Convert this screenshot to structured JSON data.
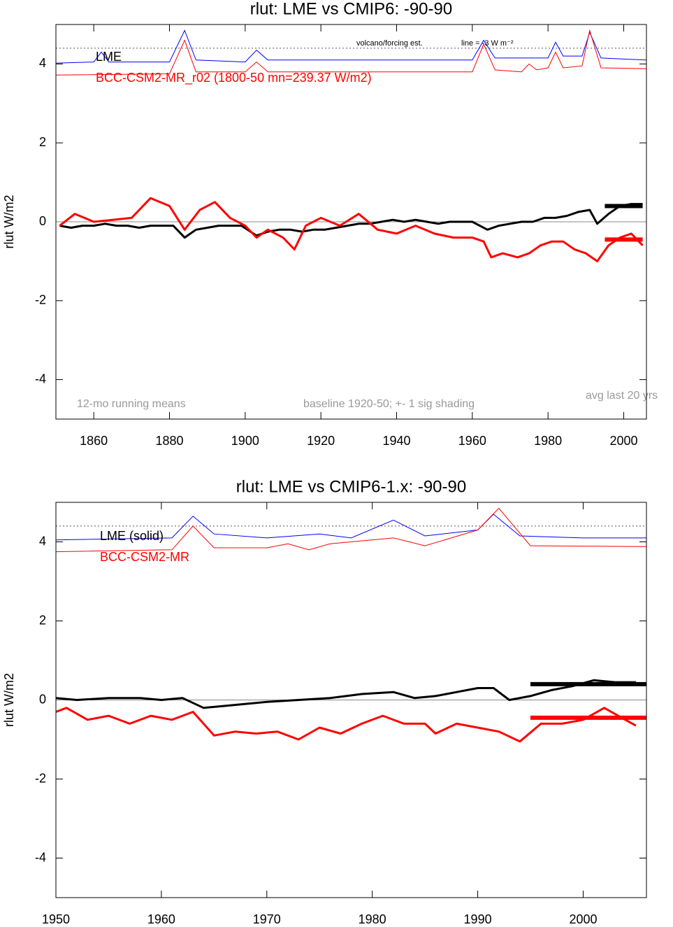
{
  "chart_data": [
    {
      "type": "line",
      "title": "rlut: LME vs CMIP6: -90-90",
      "ylabel": "rlut W/m2",
      "xlim": [
        1850,
        2006
      ],
      "ylim": [
        -5,
        5
      ],
      "xticks": [
        1860,
        1880,
        1900,
        1920,
        1940,
        1960,
        1980,
        2000
      ],
      "yticks": [
        -4,
        -2,
        0,
        2,
        4
      ],
      "ref_line": 4.4,
      "avg_period": [
        1995,
        2005
      ],
      "series": [
        {
          "name": "LME",
          "color": "#000000",
          "avg": 0.4,
          "x": [
            1851,
            1854,
            1857,
            1860,
            1863,
            1866,
            1869,
            1872,
            1875,
            1878,
            1881,
            1884,
            1887,
            1890,
            1893,
            1896,
            1899,
            1903,
            1906,
            1909,
            1912,
            1915,
            1918,
            1921,
            1924,
            1927,
            1930,
            1933,
            1936,
            1939,
            1942,
            1945,
            1948,
            1951,
            1954,
            1957,
            1960,
            1964,
            1967,
            1970,
            1973,
            1976,
            1979,
            1982,
            1985,
            1988,
            1991,
            1993,
            1996,
            1999,
            2002,
            2005
          ],
          "values": [
            -0.1,
            -0.15,
            -0.1,
            -0.1,
            -0.05,
            -0.1,
            -0.1,
            -0.15,
            -0.1,
            -0.1,
            -0.1,
            -0.4,
            -0.2,
            -0.15,
            -0.1,
            -0.1,
            -0.1,
            -0.35,
            -0.25,
            -0.2,
            -0.2,
            -0.25,
            -0.2,
            -0.2,
            -0.15,
            -0.1,
            -0.05,
            -0.05,
            0,
            0.05,
            0,
            0.05,
            0,
            -0.05,
            0,
            0,
            0,
            -0.2,
            -0.1,
            -0.05,
            0,
            0,
            0.1,
            0.1,
            0.15,
            0.25,
            0.3,
            -0.05,
            0.2,
            0.4,
            0.45,
            0.45
          ]
        },
        {
          "name": "BCC-CSM2-MR_r02 (1800-50 mn=239.37 W/m2)",
          "color": "#ff0000",
          "avg": -0.45,
          "x": [
            1851,
            1855,
            1860,
            1865,
            1870,
            1875,
            1880,
            1884,
            1888,
            1892,
            1896,
            1900,
            1903,
            1906,
            1910,
            1913,
            1916,
            1920,
            1925,
            1930,
            1935,
            1940,
            1945,
            1950,
            1955,
            1960,
            1963,
            1965,
            1968,
            1972,
            1975,
            1978,
            1981,
            1984,
            1987,
            1990,
            1993,
            1996,
            1999,
            2002,
            2005
          ],
          "values": [
            -0.1,
            0.2,
            0,
            0.05,
            0.1,
            0.6,
            0.4,
            -0.2,
            0.3,
            0.5,
            0.1,
            -0.1,
            -0.4,
            -0.2,
            -0.4,
            -0.7,
            -0.1,
            0.1,
            -0.1,
            0.2,
            -0.2,
            -0.3,
            -0.1,
            -0.3,
            -0.4,
            -0.4,
            -0.5,
            -0.9,
            -0.8,
            -0.9,
            -0.8,
            -0.6,
            -0.5,
            -0.5,
            -0.7,
            -0.8,
            -1,
            -0.6,
            -0.4,
            -0.3,
            -0.6
          ]
        }
      ],
      "forcing": [
        {
          "color": "#0000ff",
          "x": [
            1850,
            1860,
            1862,
            1864,
            1880,
            1884,
            1887,
            1900,
            1903,
            1906,
            1960,
            1963,
            1966,
            1975,
            1980,
            1982,
            1984,
            1989,
            1991,
            1994,
            2006
          ],
          "values": [
            4.02,
            4.05,
            4.3,
            4.05,
            4.05,
            4.85,
            4.1,
            4.05,
            4.35,
            4.1,
            4.1,
            4.6,
            4.15,
            4.15,
            4.15,
            4.55,
            4.2,
            4.2,
            4.8,
            4.15,
            4.1
          ]
        },
        {
          "color": "#ff0000",
          "x": [
            1850,
            1880,
            1884,
            1887,
            1900,
            1903,
            1906,
            1960,
            1963,
            1966,
            1973,
            1975,
            1977,
            1980,
            1982,
            1984,
            1989,
            1991,
            1994,
            2006
          ],
          "values": [
            3.72,
            3.75,
            4.6,
            3.8,
            3.8,
            4.05,
            3.8,
            3.8,
            4.5,
            3.85,
            3.8,
            4.0,
            3.85,
            3.9,
            4.3,
            3.9,
            3.95,
            4.85,
            3.9,
            3.88
          ]
        }
      ],
      "annotations": [
        "volcano/forcing est.",
        "line = -3 W m⁻²",
        "12-mo running means",
        "baseline 1920-50; +- 1 sig shading",
        "avg last 20 yrs"
      ]
    },
    {
      "type": "line",
      "title": "rlut: LME vs CMIP6-1.x: -90-90",
      "ylabel": "rlut W/m2",
      "xlim": [
        1950,
        2006
      ],
      "ylim": [
        -5,
        5
      ],
      "xticks": [
        1950,
        1960,
        1970,
        1980,
        1990,
        2000
      ],
      "yticks": [
        -4,
        -2,
        0,
        2,
        4
      ],
      "ref_line": 4.4,
      "avg_period": [
        1995,
        2006
      ],
      "series": [
        {
          "name": "LME (solid)",
          "color": "#000000",
          "avg": 0.4,
          "x": [
            1950,
            1952,
            1955,
            1958,
            1960,
            1962,
            1964,
            1966,
            1968,
            1970,
            1973,
            1976,
            1979,
            1982,
            1984,
            1986,
            1988,
            1990,
            1991.5,
            1993,
            1995,
            1997,
            1999,
            2001,
            2003,
            2005
          ],
          "values": [
            0.05,
            0,
            0.05,
            0.05,
            0,
            0.05,
            -0.2,
            -0.15,
            -0.1,
            -0.05,
            0,
            0.05,
            0.15,
            0.2,
            0.05,
            0.1,
            0.2,
            0.3,
            0.3,
            0,
            0.1,
            0.25,
            0.35,
            0.5,
            0.45,
            0.45
          ]
        },
        {
          "name": "BCC-CSM2-MR",
          "color": "#ff0000",
          "avg": -0.45,
          "x": [
            1950,
            1951,
            1953,
            1955,
            1957,
            1959,
            1961,
            1963,
            1965,
            1967,
            1969,
            1971,
            1973,
            1975,
            1977,
            1979,
            1981,
            1983,
            1985,
            1986,
            1988,
            1990,
            1992,
            1994,
            1996,
            1998,
            2000,
            2002,
            2004,
            2005
          ],
          "values": [
            -0.3,
            -0.2,
            -0.5,
            -0.4,
            -0.6,
            -0.4,
            -0.5,
            -0.3,
            -0.9,
            -0.8,
            -0.85,
            -0.8,
            -1,
            -0.7,
            -0.85,
            -0.6,
            -0.4,
            -0.6,
            -0.6,
            -0.85,
            -0.6,
            -0.7,
            -0.8,
            -1.05,
            -0.6,
            -0.6,
            -0.5,
            -0.2,
            -0.5,
            -0.65
          ]
        }
      ],
      "forcing": [
        {
          "color": "#0000ff",
          "x": [
            1950,
            1961,
            1963,
            1965,
            1970,
            1975,
            1978,
            1982,
            1985,
            1990,
            1991.5,
            1994,
            2000,
            2006
          ],
          "values": [
            4.05,
            4.1,
            4.65,
            4.2,
            4.1,
            4.2,
            4.1,
            4.55,
            4.15,
            4.3,
            4.7,
            4.15,
            4.1,
            4.1
          ]
        },
        {
          "color": "#ff0000",
          "x": [
            1950,
            1961,
            1963,
            1965,
            1970,
            1972,
            1974,
            1976,
            1982,
            1985,
            1990,
            1992,
            1995,
            2006
          ],
          "values": [
            3.75,
            3.8,
            4.4,
            3.85,
            3.85,
            3.95,
            3.8,
            3.95,
            4.1,
            3.9,
            4.3,
            4.85,
            3.9,
            3.88
          ]
        }
      ]
    }
  ]
}
